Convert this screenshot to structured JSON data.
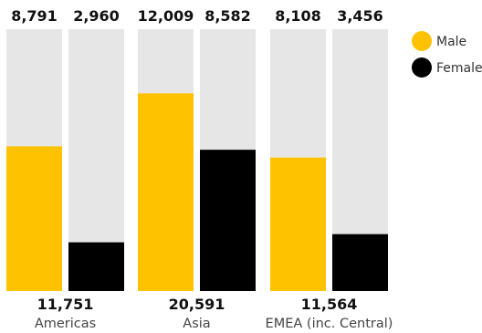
{
  "chart_data": {
    "type": "bar",
    "subtype": "100%-stacked-background",
    "categories": [
      "Americas",
      "Asia",
      "EMEA (inc. Central)"
    ],
    "totals": [
      "11,751",
      "20,591",
      "11,564"
    ],
    "series": [
      {
        "name": "Male",
        "color": "#FFC200",
        "values": [
          8791,
          12009,
          8108
        ],
        "labels": [
          "8,791",
          "12,009",
          "8,108"
        ]
      },
      {
        "name": "Female",
        "color": "#000000",
        "values": [
          2960,
          8582,
          3456
        ],
        "labels": [
          "2,960",
          "8,582",
          "3,456"
        ]
      }
    ],
    "background_color": "#E6E6E6",
    "legend": {
      "position": "top-right",
      "items": [
        {
          "name": "Male",
          "color": "#FFC200"
        },
        {
          "name": "Female",
          "color": "#000000"
        }
      ]
    },
    "grid": false
  }
}
